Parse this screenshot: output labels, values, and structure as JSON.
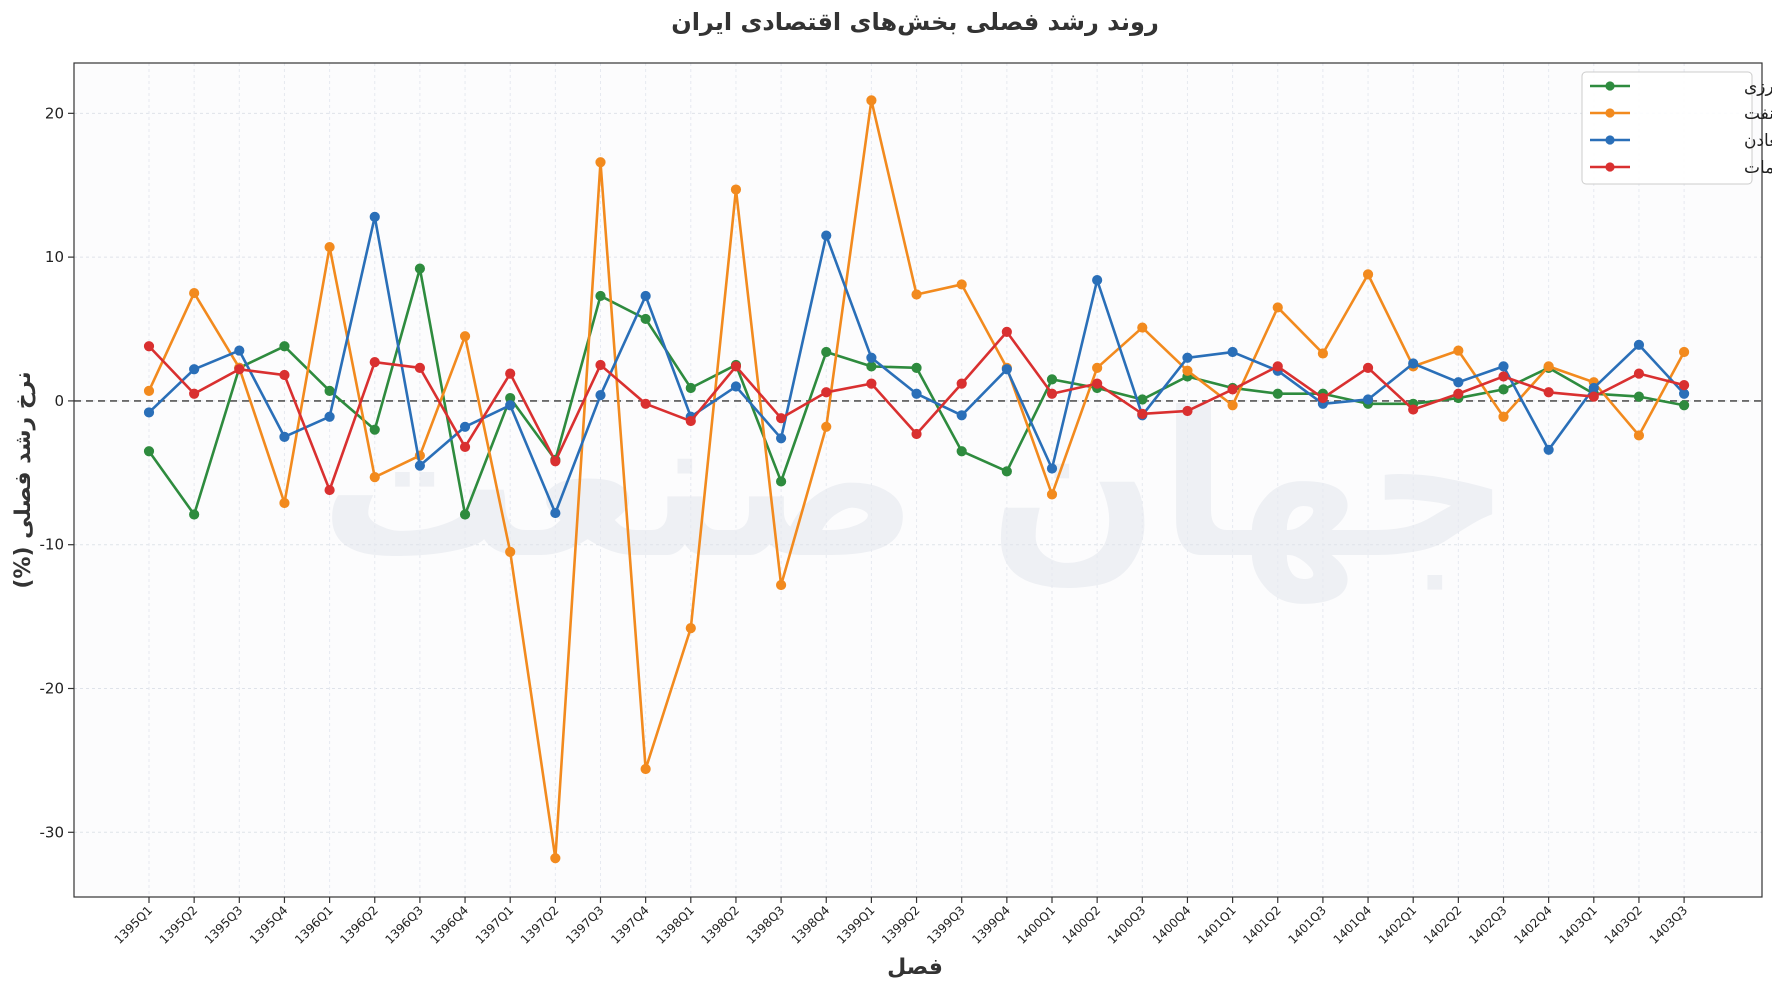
{
  "chart_data": {
    "type": "line",
    "title": "روند رشد فصلی بخش‌های اقتصادی ایران",
    "xlabel": "فصل",
    "ylabel": "نرخ رشد فصلی (%)",
    "watermark": "جهان صنعت",
    "ylim": [
      -34.5,
      23.5
    ],
    "yticks": [
      20,
      10,
      0,
      -10,
      -20,
      -30
    ],
    "grid": true,
    "zero_line": true,
    "legend_position": "top-right",
    "categories": [
      "1395Q1",
      "1395Q2",
      "1395Q3",
      "1395Q4",
      "1396Q1",
      "1396Q2",
      "1396Q3",
      "1396Q4",
      "1397Q1",
      "1397Q2",
      "1397Q3",
      "1397Q4",
      "1398Q1",
      "1398Q2",
      "1398Q3",
      "1398Q4",
      "1399Q1",
      "1399Q2",
      "1399Q3",
      "1399Q4",
      "1400Q1",
      "1400Q2",
      "1400Q3",
      "1400Q4",
      "1401Q1",
      "1401Q2",
      "1401Q3",
      "1401Q4",
      "1402Q1",
      "1402Q2",
      "1402Q3",
      "1402Q4",
      "1403Q1",
      "1403Q2",
      "1403Q3"
    ],
    "series": [
      {
        "name": "کشاورزی",
        "color": "#2e8b3e",
        "values": [
          -3.5,
          -7.9,
          2.3,
          3.8,
          0.7,
          -2.0,
          9.2,
          -7.9,
          0.2,
          -4.1,
          7.3,
          5.7,
          0.9,
          2.5,
          -5.6,
          3.4,
          2.4,
          2.3,
          -3.5,
          -4.9,
          1.5,
          0.9,
          0.1,
          1.7,
          0.9,
          0.5,
          0.5,
          -0.2,
          -0.2,
          0.2,
          0.8,
          2.3,
          0.5,
          0.3,
          -0.3
        ]
      },
      {
        "name": "نفت",
        "color": "#f28a1e",
        "values": [
          0.7,
          7.5,
          2.3,
          -7.1,
          10.7,
          -5.3,
          -3.8,
          4.5,
          -10.5,
          -31.8,
          16.6,
          -25.6,
          -15.8,
          14.7,
          -12.8,
          -1.8,
          20.9,
          7.4,
          8.1,
          2.3,
          -6.5,
          2.3,
          5.1,
          2.1,
          -0.3,
          6.5,
          3.3,
          8.8,
          2.4,
          3.5,
          -1.1,
          2.4,
          1.3,
          -2.4,
          3.4
        ]
      },
      {
        "name": "صنایع و معادن",
        "color": "#2a6fb8",
        "values": [
          -0.8,
          2.2,
          3.5,
          -2.5,
          -1.1,
          12.8,
          -4.5,
          -1.8,
          -0.3,
          -7.8,
          0.4,
          7.3,
          -1.1,
          1.0,
          -2.6,
          11.5,
          3.0,
          0.5,
          -1.0,
          2.2,
          -4.7,
          8.4,
          -1.0,
          3.0,
          3.4,
          2.1,
          -0.2,
          0.1,
          2.6,
          1.3,
          2.4,
          -3.4,
          0.9,
          3.9,
          0.5
        ]
      },
      {
        "name": "خدمات",
        "color": "#d93030",
        "values": [
          3.8,
          0.5,
          2.2,
          1.8,
          -6.2,
          2.7,
          2.3,
          -3.2,
          1.9,
          -4.2,
          2.5,
          -0.2,
          -1.4,
          2.4,
          -1.2,
          0.6,
          1.2,
          -2.3,
          1.2,
          4.8,
          0.5,
          1.2,
          -0.9,
          -0.7,
          0.8,
          2.4,
          0.2,
          2.3,
          -0.6,
          0.5,
          1.7,
          0.6,
          0.3,
          1.9,
          1.1
        ]
      }
    ]
  }
}
